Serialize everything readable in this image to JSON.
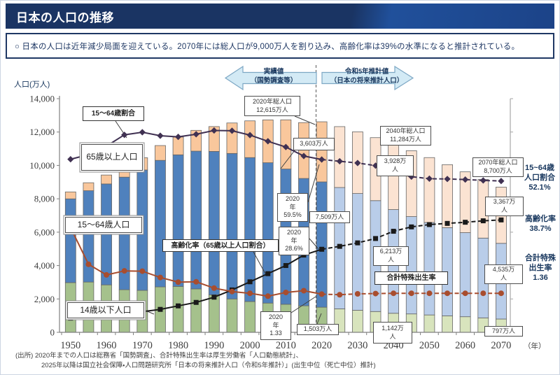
{
  "title": "日本の人口の推移",
  "lead": "○ 日本の人口は近年減少局面を迎えている。2070年には総人口が9,000万人を割り込み、高齢化率は39%の水準になると推計されている。",
  "arrows": {
    "left": "実績値\n（国勢調査等）",
    "right": "令和5年推計値\n（日本の将来推計人口）"
  },
  "axis": {
    "y_title": "人口(万人)",
    "x_unit": "（年）"
  },
  "annotations": {
    "ratio_label": "15～64歳割合",
    "pop65_label": "65歳以上人口",
    "pop1564_label": "15～64歳人口",
    "popU14_label": "14歳以下人口",
    "aging_label": "高齢化率（65歳以上人口割合）",
    "tfr_label": "合計特殊出生率",
    "total2020": "2020年総人口\n12,615万人",
    "total2040": "2040年総人口\n11,284万人",
    "total2070": "2070年総人口\n8,700万人",
    "v3603": "3,603万人",
    "v3928": "3,928万\n人",
    "v3367": "3,367万\n人",
    "v7509": "7,509万人",
    "v6213": "6,213万\n人",
    "v4535": "4,535万\n人",
    "v1503": "1,503万人",
    "v1142": "1,142万\n人",
    "v797": "797万人",
    "ratio2020": "2020\n年\n59.5%",
    "aging2020": "2020\n年\n28.6%",
    "tfr2020": "2020\n年\n1.33"
  },
  "right_labels": {
    "ratio": "15~64歳\n人口割合\n52.1%",
    "aging": "高齢化率\n38.7%",
    "tfr": "合計特殊\n出生率\n1.36"
  },
  "source": {
    "line1": "(出所) 2020年までの人口は総務省「国勢調査」、合計特殊出生率は厚生労働省「人口動態統計」、",
    "line2": "2025年以降は国立社会保障・人口問題研究所「日本の将来推計人口（令和5年推計）」(出生中位（死亡中位）推計)"
  },
  "chart_data": {
    "type": "bar",
    "title": "日本の人口の推移",
    "xlabel": "年",
    "ylabel": "人口(万人)",
    "ylim": [
      0,
      14000
    ],
    "y_ticks": [
      0,
      2000,
      4000,
      6000,
      8000,
      10000,
      12000,
      14000
    ],
    "x": [
      1950,
      1955,
      1960,
      1965,
      1970,
      1975,
      1980,
      1985,
      1990,
      1995,
      2000,
      2005,
      2010,
      2015,
      2020,
      2025,
      2030,
      2035,
      2040,
      2045,
      2050,
      2055,
      2060,
      2065,
      2070
    ],
    "x_tick_labels": [
      1950,
      1960,
      1970,
      1980,
      1990,
      2000,
      2010,
      2020,
      2030,
      2040,
      2050,
      2060,
      2070
    ],
    "projection_from": 2025,
    "bar_series": [
      {
        "name": "14歳以下人口",
        "color": "#a5c18c",
        "proj_color": "#d8e4bd",
        "values": [
          2979,
          3012,
          2843,
          2553,
          2515,
          2722,
          2751,
          2603,
          2249,
          2001,
          1847,
          1752,
          1680,
          1589,
          1503,
          1407,
          1321,
          1246,
          1142,
          1103,
          1041,
          986,
          935,
          866,
          797
        ]
      },
      {
        "name": "15～64歳人口",
        "color": "#4f81bd",
        "proj_color": "#b9cde9",
        "values": [
          5017,
          5473,
          6047,
          6744,
          7212,
          7581,
          7883,
          8251,
          8590,
          8716,
          8622,
          8409,
          8103,
          7629,
          7509,
          7270,
          6996,
          6644,
          6213,
          5832,
          5540,
          5284,
          5037,
          4780,
          4535
        ]
      },
      {
        "name": "65歳以上人口",
        "color": "#f9c79c",
        "proj_color": "#fbe3d2",
        "values": [
          416,
          476,
          535,
          618,
          733,
          887,
          1065,
          1247,
          1489,
          1826,
          2201,
          2567,
          2948,
          3347,
          3603,
          3648,
          3696,
          3774,
          3928,
          3945,
          3888,
          3774,
          3643,
          3513,
          3367
        ]
      }
    ],
    "line_series": [
      {
        "name": "15～64歳割合",
        "unit": "%",
        "color": "#403152",
        "marker": "diamond",
        "values": [
          59.6,
          61.2,
          64.1,
          68.0,
          68.9,
          67.7,
          67.3,
          68.2,
          69.5,
          69.4,
          67.9,
          65.8,
          63.8,
          60.7,
          59.5,
          58.9,
          58.3,
          57.4,
          55.1,
          53.6,
          52.9,
          52.8,
          52.6,
          52.3,
          52.1
        ]
      },
      {
        "name": "高齢化率（65歳以上人口割合）",
        "unit": "%",
        "color": "#1a1a1a",
        "marker": "square",
        "values": [
          4.9,
          5.3,
          5.7,
          6.3,
          7.1,
          7.9,
          9.1,
          10.3,
          12.1,
          14.6,
          17.4,
          20.2,
          23.0,
          26.6,
          28.6,
          29.6,
          30.8,
          32.3,
          34.8,
          36.3,
          37.1,
          37.5,
          37.9,
          38.4,
          38.7
        ]
      },
      {
        "name": "合計特殊出生率",
        "unit": "",
        "color": "#a84d2e",
        "marker": "circle",
        "values": [
          3.65,
          2.37,
          2.0,
          2.14,
          2.13,
          1.91,
          1.75,
          1.76,
          1.54,
          1.42,
          1.36,
          1.26,
          1.39,
          1.45,
          1.33,
          1.31,
          1.34,
          1.35,
          1.36,
          1.36,
          1.36,
          1.36,
          1.36,
          1.36,
          1.36
        ]
      }
    ],
    "key_totals": {
      "2020": 12615,
      "2040": 11284,
      "2070": 8700
    },
    "legend_position": "on-chart-callouts",
    "grid": false
  }
}
